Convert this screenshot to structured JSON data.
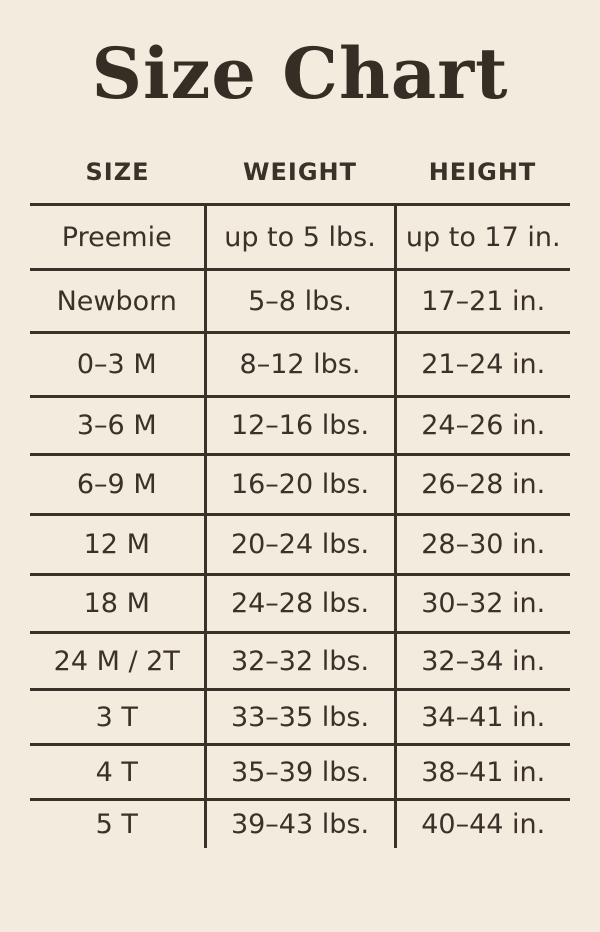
{
  "title": "Size Chart",
  "colors": {
    "background": "#f2ebde",
    "ink": "#3a3128",
    "title_ink": "#362e24"
  },
  "chart_data": {
    "type": "table",
    "title": "Size Chart",
    "columns": [
      "SIZE",
      "WEIGHT",
      "HEIGHT"
    ],
    "rows": [
      [
        "Preemie",
        "up to 5 lbs.",
        "up to 17 in."
      ],
      [
        "Newborn",
        "5–8 lbs.",
        "17–21 in."
      ],
      [
        "0–3 M",
        "8–12 lbs.",
        "21–24 in."
      ],
      [
        "3–6 M",
        "12–16 lbs.",
        "24–26 in."
      ],
      [
        "6–9 M",
        "16–20 lbs.",
        "26–28 in."
      ],
      [
        "12 M",
        "20–24 lbs.",
        "28–30 in."
      ],
      [
        "18 M",
        "24–28 lbs.",
        "30–32 in."
      ],
      [
        "24 M / 2T",
        "32–32 lbs.",
        "32–34 in."
      ],
      [
        "3 T",
        "33–35 lbs.",
        "34–41 in."
      ],
      [
        "4 T",
        "35–39 lbs.",
        "38–41 in."
      ],
      [
        "5 T",
        "39–43 lbs.",
        "40–44 in."
      ]
    ],
    "layout": {
      "grid": "horizontal rules between all rows, vertical rules flanking middle column, no outer left/right/bottom border",
      "header_position": "above top rule, uppercase bold"
    }
  }
}
